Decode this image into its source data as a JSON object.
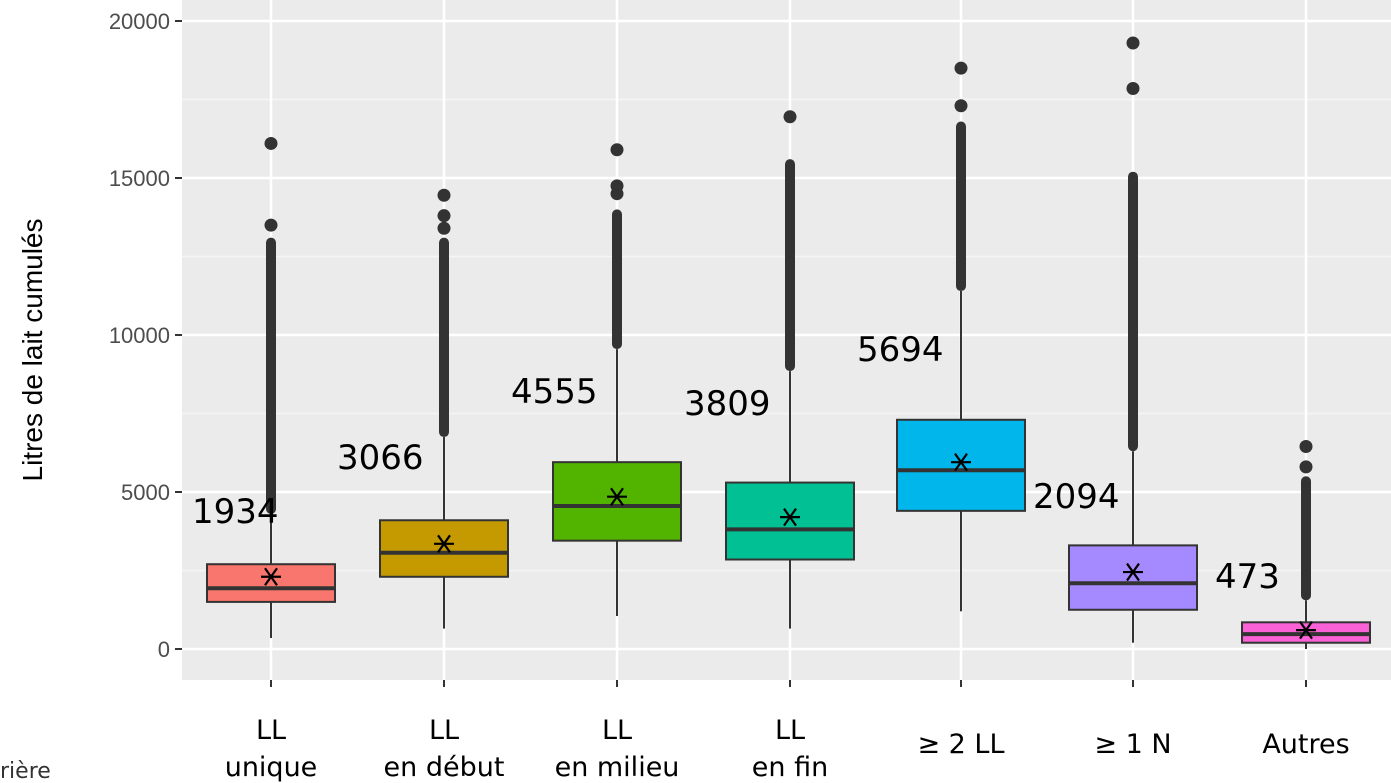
{
  "chart_data": {
    "type": "box",
    "ylabel": "Litres de lait cumulés",
    "ylim": [
      -700,
      20500
    ],
    "yticks": [
      0,
      5000,
      10000,
      15000,
      20000
    ],
    "ytick_labels": [
      "0",
      "5000",
      "10000",
      "15000",
      "20000"
    ],
    "grid": true,
    "mean_marker": "*",
    "footer_fragment": "rière",
    "categories": [
      {
        "label_lines": [
          "LL",
          "unique"
        ],
        "color": "#F8766D",
        "q1": 1500,
        "median": 1934,
        "q3": 2700,
        "whisker_low": 350,
        "whisker_high": 4300,
        "mean": 2300,
        "median_label": "1934",
        "outliers_dense": [
          4300,
          13100
        ],
        "outliers": [
          13500,
          16100
        ]
      },
      {
        "label_lines": [
          "LL",
          "en début"
        ],
        "color": "#C49A00",
        "q1": 2300,
        "median": 3066,
        "q3": 4100,
        "whisker_low": 650,
        "whisker_high": 6750,
        "mean": 3350,
        "median_label": "3066",
        "outliers_dense": [
          6750,
          13100
        ],
        "outliers": [
          13400,
          13800,
          14450
        ]
      },
      {
        "label_lines": [
          "LL",
          "en milieu"
        ],
        "color": "#53B400",
        "q1": 3450,
        "median": 4555,
        "q3": 5950,
        "whisker_low": 1050,
        "whisker_high": 9550,
        "mean": 4850,
        "median_label": "4555",
        "outliers_dense": [
          9550,
          14000
        ],
        "outliers": [
          14500,
          14750,
          15900
        ]
      },
      {
        "label_lines": [
          "LL",
          "en fin"
        ],
        "color": "#00C094",
        "q1": 2850,
        "median": 3809,
        "q3": 5300,
        "whisker_low": 650,
        "whisker_high": 8850,
        "mean": 4200,
        "median_label": "3809",
        "outliers_dense": [
          8850,
          15600
        ],
        "outliers": [
          16950
        ]
      },
      {
        "label_lines": [
          "≥ 2 LL"
        ],
        "color": "#00B6EB",
        "q1": 4400,
        "median": 5694,
        "q3": 7300,
        "whisker_low": 1200,
        "whisker_high": 11400,
        "mean": 5950,
        "median_label": "5694",
        "outliers_dense": [
          11400,
          16800
        ],
        "outliers": [
          17300,
          18500
        ]
      },
      {
        "label_lines": [
          "≥ 1 N"
        ],
        "color": "#A58AFF",
        "q1": 1250,
        "median": 2094,
        "q3": 3300,
        "whisker_low": 200,
        "whisker_high": 6300,
        "mean": 2450,
        "median_label": "2094",
        "outliers_dense": [
          6300,
          15200
        ],
        "outliers": [
          17850,
          19300
        ]
      },
      {
        "label_lines": [
          "Autres"
        ],
        "color": "#FB61D7",
        "q1": 200,
        "median": 473,
        "q3": 850,
        "whisker_low": 0,
        "whisker_high": 1550,
        "mean": 600,
        "median_label": "473",
        "outliers_dense": [
          1550,
          5500
        ],
        "outliers": [
          5800,
          6450
        ]
      }
    ]
  }
}
